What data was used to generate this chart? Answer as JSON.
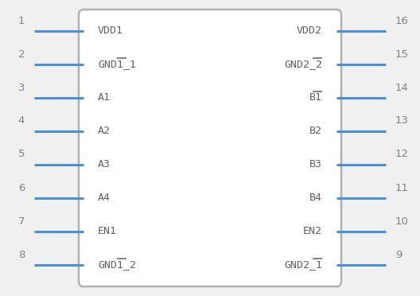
{
  "background_color": "#f0f0f0",
  "box_color": "#b0b0b0",
  "box_fill": "#ffffff",
  "pin_color": "#4a90d9",
  "text_color": "#606060",
  "number_color": "#808080",
  "left_pins": [
    {
      "num": 1,
      "label": "VDD1",
      "overline": ""
    },
    {
      "num": 2,
      "label": "GND1_1",
      "overline": "_1"
    },
    {
      "num": 3,
      "label": "A1",
      "overline": ""
    },
    {
      "num": 4,
      "label": "A2",
      "overline": ""
    },
    {
      "num": 5,
      "label": "A3",
      "overline": ""
    },
    {
      "num": 6,
      "label": "A4",
      "overline": ""
    },
    {
      "num": 7,
      "label": "EN1",
      "overline": ""
    },
    {
      "num": 8,
      "label": "GND1_2",
      "overline": "_2"
    }
  ],
  "right_pins": [
    {
      "num": 16,
      "label": "VDD2",
      "overline": ""
    },
    {
      "num": 15,
      "label": "GND2_2",
      "overline": "_2"
    },
    {
      "num": 14,
      "label": "B1",
      "overline": "B1"
    },
    {
      "num": 13,
      "label": "B2",
      "overline": ""
    },
    {
      "num": 12,
      "label": "B3",
      "overline": ""
    },
    {
      "num": 11,
      "label": "B4",
      "overline": ""
    },
    {
      "num": 10,
      "label": "EN2",
      "overline": ""
    },
    {
      "num": 9,
      "label": "GND2_1",
      "overline": "_1"
    }
  ]
}
